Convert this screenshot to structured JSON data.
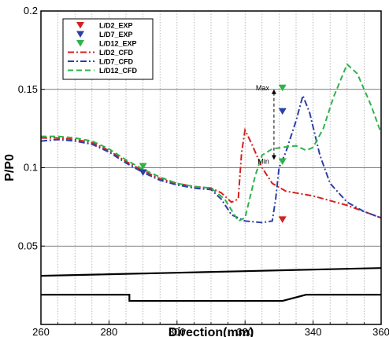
{
  "chart_data": {
    "type": "line",
    "xlabel": "Direction(mm)",
    "ylabel": "P/P0",
    "xlim": [
      260,
      360
    ],
    "ylim": [
      0,
      0.2
    ],
    "x_ticks": [
      260,
      280,
      300,
      320,
      340,
      360
    ],
    "x_tick_labels": [
      "260",
      "280",
      "300",
      "320",
      "340",
      "360"
    ],
    "y_ticks": [
      0.05,
      0.1,
      0.15,
      0.2
    ],
    "y_tick_labels": [
      "0.05",
      "0.1",
      "0.15",
      "0.2"
    ],
    "grid": "vertical dotted every 5 mm; horizontal solid at y ticks",
    "legend_position": "top-left",
    "series": [
      {
        "name": "L/D2_EXP",
        "kind": "marker",
        "color": "#d42020",
        "points": [
          [
            331,
            0.067
          ]
        ]
      },
      {
        "name": "L/D7_EXP",
        "kind": "marker",
        "color": "#2a3fa8",
        "points": [
          [
            290,
            0.097
          ],
          [
            331,
            0.136
          ]
        ]
      },
      {
        "name": "L/D12_EXP",
        "kind": "marker",
        "color": "#2db34a",
        "points": [
          [
            290,
            0.101
          ],
          [
            331,
            0.151
          ],
          [
            331,
            0.104
          ]
        ]
      },
      {
        "name": "L/D2_CFD",
        "kind": "line",
        "dash": "dashdot",
        "color": "#d42020",
        "points": [
          [
            260,
            0.119
          ],
          [
            265,
            0.119
          ],
          [
            270,
            0.118
          ],
          [
            275,
            0.116
          ],
          [
            280,
            0.111
          ],
          [
            285,
            0.104
          ],
          [
            290,
            0.098
          ],
          [
            295,
            0.093
          ],
          [
            300,
            0.09
          ],
          [
            305,
            0.088
          ],
          [
            310,
            0.087
          ],
          [
            313,
            0.084
          ],
          [
            316,
            0.078
          ],
          [
            318,
            0.08
          ],
          [
            319,
            0.11
          ],
          [
            320,
            0.124
          ],
          [
            322,
            0.115
          ],
          [
            325,
            0.1
          ],
          [
            328,
            0.09
          ],
          [
            332,
            0.085
          ],
          [
            340,
            0.082
          ],
          [
            350,
            0.076
          ],
          [
            360,
            0.068
          ]
        ]
      },
      {
        "name": "L/D7_CFD",
        "kind": "line",
        "dash": "dashdot",
        "color": "#2a3fa8",
        "points": [
          [
            260,
            0.117
          ],
          [
            265,
            0.118
          ],
          [
            270,
            0.117
          ],
          [
            275,
            0.115
          ],
          [
            280,
            0.11
          ],
          [
            285,
            0.103
          ],
          [
            290,
            0.097
          ],
          [
            295,
            0.092
          ],
          [
            300,
            0.089
          ],
          [
            305,
            0.087
          ],
          [
            310,
            0.086
          ],
          [
            313,
            0.08
          ],
          [
            316,
            0.07
          ],
          [
            320,
            0.066
          ],
          [
            325,
            0.065
          ],
          [
            328,
            0.066
          ],
          [
            329,
            0.08
          ],
          [
            330,
            0.1
          ],
          [
            332,
            0.11
          ],
          [
            335,
            0.13
          ],
          [
            337,
            0.146
          ],
          [
            339,
            0.135
          ],
          [
            342,
            0.108
          ],
          [
            345,
            0.09
          ],
          [
            350,
            0.078
          ],
          [
            355,
            0.072
          ],
          [
            360,
            0.068
          ]
        ]
      },
      {
        "name": "L/D12_CFD",
        "kind": "line",
        "dash": "dash",
        "color": "#2db34a",
        "points": [
          [
            260,
            0.12
          ],
          [
            265,
            0.12
          ],
          [
            270,
            0.119
          ],
          [
            275,
            0.117
          ],
          [
            280,
            0.112
          ],
          [
            285,
            0.105
          ],
          [
            290,
            0.099
          ],
          [
            295,
            0.094
          ],
          [
            300,
            0.09
          ],
          [
            305,
            0.088
          ],
          [
            310,
            0.087
          ],
          [
            314,
            0.08
          ],
          [
            318,
            0.066
          ],
          [
            320,
            0.068
          ],
          [
            323,
            0.095
          ],
          [
            325,
            0.108
          ],
          [
            328,
            0.112
          ],
          [
            331,
            0.113
          ],
          [
            335,
            0.114
          ],
          [
            338,
            0.111
          ],
          [
            340,
            0.113
          ],
          [
            343,
            0.125
          ],
          [
            346,
            0.145
          ],
          [
            350,
            0.166
          ],
          [
            353,
            0.16
          ],
          [
            357,
            0.14
          ],
          [
            360,
            0.122
          ]
        ]
      }
    ],
    "geometry_lines": [
      {
        "name": "upper-wall",
        "color": "#000000",
        "points": [
          [
            260,
            0.031
          ],
          [
            280,
            0.032
          ],
          [
            300,
            0.033
          ],
          [
            320,
            0.034
          ],
          [
            340,
            0.035
          ],
          [
            360,
            0.036
          ]
        ]
      },
      {
        "name": "lower-wall",
        "color": "#000000",
        "points": [
          [
            260,
            0.019
          ],
          [
            286,
            0.019
          ],
          [
            286,
            0.015
          ],
          [
            331,
            0.015
          ],
          [
            338,
            0.019
          ],
          [
            360,
            0.019
          ]
        ]
      }
    ],
    "annotations": {
      "max_label": "Max",
      "min_label": "Min",
      "max_point": [
        331,
        0.151
      ],
      "min_point": [
        331,
        0.104
      ],
      "arrow_x": 328.5
    }
  }
}
